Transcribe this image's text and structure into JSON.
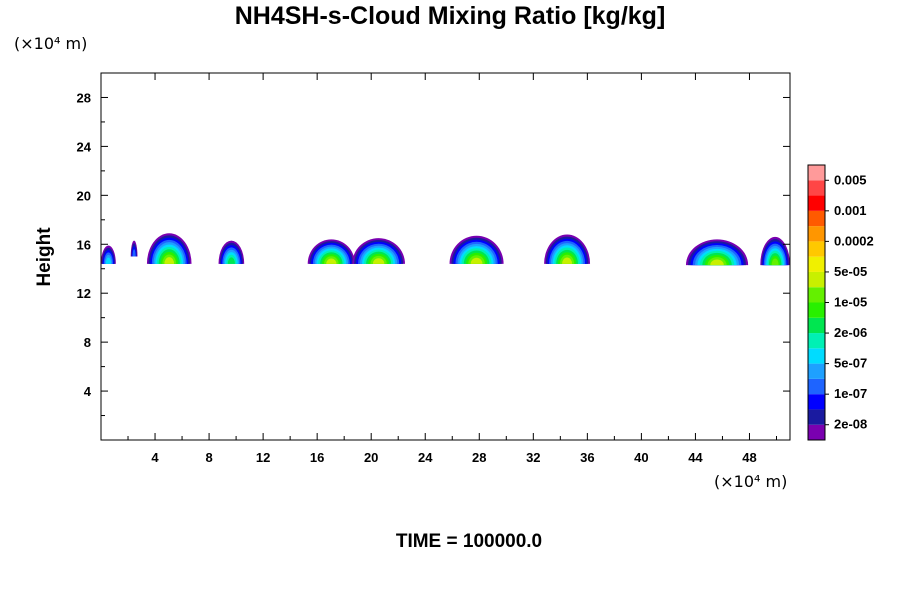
{
  "chart_data": {
    "type": "heatmap",
    "title": "NH4SH-s-Cloud Mixing Ratio [kg/kg]",
    "ylabel": "Height",
    "y_unit": "(×10⁴ m)",
    "x_unit": "(×10⁴ m)",
    "annotation": "TIME = 100000.0",
    "xlim": [
      0,
      51
    ],
    "ylim": [
      0,
      30
    ],
    "x_ticks": [
      4,
      8,
      12,
      16,
      20,
      24,
      28,
      32,
      36,
      40,
      44,
      48
    ],
    "x_tick_labels": [
      "4",
      "8",
      "12",
      "16",
      "20",
      "24",
      "28",
      "32",
      "36",
      "40",
      "44",
      "48"
    ],
    "y_ticks": [
      4,
      8,
      12,
      16,
      20,
      24,
      28
    ],
    "y_tick_labels": [
      "4",
      "8",
      "12",
      "16",
      "20",
      "24",
      "28"
    ],
    "colorbar": {
      "colors": [
        "#7a00b0",
        "#1a1aa0",
        "#0000ff",
        "#1e64ff",
        "#1ea0ff",
        "#00dcff",
        "#00f0b4",
        "#00e650",
        "#28f000",
        "#64f000",
        "#c8f000",
        "#f0f000",
        "#ffc800",
        "#ff9600",
        "#ff5a00",
        "#ff0000",
        "#ff4646",
        "#ff9a9a"
      ],
      "labels": [
        "2e-08",
        "1e-07",
        "5e-07",
        "2e-06",
        "1e-05",
        "5e-05",
        "0.0002",
        "0.001",
        "0.005"
      ]
    },
    "clouds": [
      {
        "x0": 0.0,
        "x1": 1.1,
        "ybase": 14.4,
        "top": 15.9,
        "peak": 5
      },
      {
        "x0": 2.2,
        "x1": 2.7,
        "ybase": 15.0,
        "top": 16.3,
        "peak": 3
      },
      {
        "x0": 3.4,
        "x1": 6.7,
        "ybase": 14.4,
        "top": 16.9,
        "peak": 10
      },
      {
        "x0": 8.7,
        "x1": 10.6,
        "ybase": 14.4,
        "top": 16.3,
        "peak": 7
      },
      {
        "x0": 15.3,
        "x1": 18.8,
        "ybase": 14.4,
        "top": 16.4,
        "peak": 10
      },
      {
        "x0": 18.6,
        "x1": 22.5,
        "ybase": 14.4,
        "top": 16.5,
        "peak": 10
      },
      {
        "x0": 25.8,
        "x1": 29.8,
        "ybase": 14.4,
        "top": 16.7,
        "peak": 10
      },
      {
        "x0": 32.8,
        "x1": 36.2,
        "ybase": 14.4,
        "top": 16.8,
        "peak": 10
      },
      {
        "x0": 43.3,
        "x1": 47.9,
        "ybase": 14.3,
        "top": 16.4,
        "peak": 10
      },
      {
        "x0": 48.8,
        "x1": 51.0,
        "ybase": 14.3,
        "top": 16.6,
        "peak": 9
      }
    ]
  }
}
